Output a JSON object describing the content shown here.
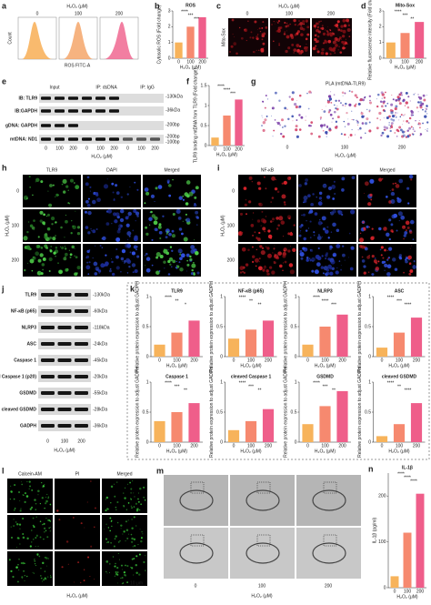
{
  "panels": {
    "a": {
      "letter": "a",
      "header": "H₂O₂ (μM)",
      "columns": [
        "0",
        "100",
        "200"
      ],
      "ylabel": "Count",
      "xlabel": "ROS FITC-A"
    },
    "b": {
      "letter": "b"
    },
    "c": {
      "letter": "c",
      "header": "H₂O₂ (μM)",
      "columns": [
        "0",
        "100",
        "200"
      ],
      "row": "Mito-Sox"
    },
    "d": {
      "letter": "d"
    },
    "e": {
      "letter": "e",
      "groups": [
        "Input",
        "IP: dsDNA",
        "IP: IgG"
      ],
      "rows": [
        "IB: TLR9",
        "IB:GAPDH",
        "gDNA: GAPDH",
        "mtDNA: ND1"
      ],
      "sizes": [
        "-130kDa",
        "-36kDa",
        "-200bp",
        "-200bp",
        "-100bp"
      ],
      "lanes": [
        "0",
        "100",
        "200",
        "0",
        "100",
        "200",
        "0",
        "100",
        "200"
      ],
      "xlabel": "H₂O₂ (μM)"
    },
    "f": {
      "letter": "f"
    },
    "g": {
      "letter": "g",
      "title": "PLA (mtDNA-TLR9)",
      "columns": [
        "0",
        "100",
        "200"
      ],
      "xlabel": "H₂O₂ (μM)"
    },
    "h": {
      "letter": "h",
      "columns": [
        "TLR9",
        "DAPI",
        "Merged"
      ],
      "rows": [
        "0",
        "100",
        "200"
      ],
      "axis": "H₂O₂ (μM)"
    },
    "i": {
      "letter": "i",
      "columns": [
        "NF-κB",
        "DAPI",
        "Merged"
      ],
      "rows": [
        "0",
        "100",
        "200"
      ],
      "axis": "H₂O₂ (μM)"
    },
    "j": {
      "letter": "j",
      "rows": [
        "TLR9",
        "NF-κB (p65)",
        "NLRP3",
        "ASC",
        "Caspase 1",
        "cleaved Caspase 1 (p20)",
        "GSDMD",
        "cleaved GSDMD",
        "GADPH"
      ],
      "sizes": [
        "-130kDa",
        "-60kDa",
        "-118kDa",
        "-24kDa",
        "-45kDa",
        "-20kDa",
        "-55kDa",
        "-28kDa",
        "-36kDa"
      ],
      "lanes": [
        "0",
        "100",
        "200"
      ],
      "xlabel": "H₂O₂ (μM)"
    },
    "k": {
      "letter": "k"
    },
    "l": {
      "letter": "l",
      "columns": [
        "Calcein-AM",
        "PI",
        "Merged"
      ],
      "scale": "10 μm",
      "xlabel": "H₂O₂ (μM)"
    },
    "m": {
      "letter": "m",
      "lanes": [
        "0",
        "100",
        "200"
      ],
      "xlabel": "H₂O₂ (μM)"
    },
    "n": {
      "letter": "n"
    }
  },
  "chart_data": [
    {
      "type": "bar",
      "title": "ROS",
      "ylabel": "Cytosolic ROS (Fold change)",
      "xlabel": "H₂O₂ (μM)",
      "categories": [
        "0",
        "100",
        "200"
      ],
      "values": [
        1,
        2,
        2.6
      ],
      "colors": [
        "#f7b35b",
        "#f6896f",
        "#ef5e8a"
      ],
      "ylim": [
        0,
        3
      ],
      "yticks": [
        0,
        1,
        2,
        3
      ],
      "annotations": [
        "****",
        "***",
        "***"
      ]
    },
    {
      "type": "bar",
      "title": "Mito-Sox",
      "ylabel": "Relative fluorescence intensity (Fold change)",
      "xlabel": "H₂O₂ (μM)",
      "categories": [
        "0",
        "100",
        "200"
      ],
      "values": [
        1,
        1.6,
        2.3
      ],
      "colors": [
        "#f7b35b",
        "#f6896f",
        "#ef5e8a"
      ],
      "ylim": [
        0,
        3
      ],
      "yticks": [
        0,
        1,
        2,
        3
      ],
      "annotations": [
        "****",
        "***",
        "**"
      ]
    },
    {
      "type": "bar",
      "title": "",
      "ylabel": "TLR9 binding mtDNA from TLR9 (Fold change)",
      "xlabel": "H₂O₂ (μM)",
      "categories": [
        "0",
        "100",
        "200"
      ],
      "values": [
        0.2,
        0.75,
        1.15
      ],
      "colors": [
        "#f7b35b",
        "#f6896f",
        "#ef5e8a"
      ],
      "ylim": [
        0,
        1.5
      ],
      "yticks": [
        0,
        0.5,
        1,
        1.5
      ],
      "annotations": [
        "****",
        "****",
        "***"
      ]
    },
    {
      "type": "bar",
      "title": "TLR9",
      "ylabel": "Relative protein expression to adjust GADPH",
      "xlabel": "H₂O₂ (μM)",
      "categories": [
        "0",
        "100",
        "200"
      ],
      "values": [
        0.2,
        0.4,
        0.6
      ],
      "colors": [
        "#f7b35b",
        "#f6896f",
        "#ef5e8a"
      ],
      "ylim": [
        0,
        1
      ],
      "yticks": [
        0,
        0.5,
        1
      ],
      "annotations": [
        "****",
        "**",
        "*"
      ]
    },
    {
      "type": "bar",
      "title": "NF-κB (p65)",
      "ylabel": "Relative protein expression to adjust GADPH",
      "xlabel": "H₂O₂ (μM)",
      "categories": [
        "0",
        "100",
        "200"
      ],
      "values": [
        0.3,
        0.45,
        0.6
      ],
      "colors": [
        "#f7b35b",
        "#f6896f",
        "#ef5e8a"
      ],
      "ylim": [
        0,
        1
      ],
      "yticks": [
        0,
        0.5,
        1
      ],
      "annotations": [
        "****",
        "**",
        "**"
      ]
    },
    {
      "type": "bar",
      "title": "NLRP3",
      "ylabel": "Relative protein expression to adjust GADPH",
      "xlabel": "H₂O₂ (μM)",
      "categories": [
        "0",
        "100",
        "200"
      ],
      "values": [
        0.2,
        0.5,
        0.7
      ],
      "colors": [
        "#f7b35b",
        "#f6896f",
        "#ef5e8a"
      ],
      "ylim": [
        0,
        1
      ],
      "yticks": [
        0,
        0.5,
        1
      ],
      "annotations": [
        "****",
        "****",
        "***"
      ]
    },
    {
      "type": "bar",
      "title": "ASC",
      "ylabel": "Relative protein expression to adjust GADPH",
      "xlabel": "H₂O₂ (μM)",
      "categories": [
        "0",
        "100",
        "200"
      ],
      "values": [
        0.15,
        0.4,
        0.65
      ],
      "colors": [
        "#f7b35b",
        "#f6896f",
        "#ef5e8a"
      ],
      "ylim": [
        0,
        1
      ],
      "yticks": [
        0,
        0.5,
        1
      ],
      "annotations": [
        "****",
        "***",
        "****"
      ]
    },
    {
      "type": "bar",
      "title": "Caspase 1",
      "ylabel": "Relative protein expression to adjust GADPH",
      "xlabel": "H₂O₂ (μM)",
      "categories": [
        "0",
        "100",
        "200"
      ],
      "values": [
        0.35,
        0.5,
        0.65
      ],
      "colors": [
        "#f7b35b",
        "#f6896f",
        "#ef5e8a"
      ],
      "ylim": [
        0,
        1
      ],
      "yticks": [
        0,
        0.5,
        1
      ],
      "annotations": [
        "****",
        "***",
        "**"
      ]
    },
    {
      "type": "bar",
      "title": "cleaved Caspase 1",
      "ylabel": "Relative protein expression to adjust GADPH",
      "xlabel": "H₂O₂ (μM)",
      "categories": [
        "0",
        "100",
        "200"
      ],
      "values": [
        0.2,
        0.35,
        0.55
      ],
      "colors": [
        "#f7b35b",
        "#f6896f",
        "#ef5e8a"
      ],
      "ylim": [
        0,
        1
      ],
      "yticks": [
        0,
        0.5,
        1
      ],
      "annotations": [
        "****",
        "***",
        "**"
      ]
    },
    {
      "type": "bar",
      "title": "GSDMD",
      "ylabel": "Relative protein expression to adjust GADPH",
      "xlabel": "H₂O₂ (μM)",
      "categories": [
        "0",
        "100",
        "200"
      ],
      "values": [
        0.3,
        0.6,
        0.85
      ],
      "colors": [
        "#f7b35b",
        "#f6896f",
        "#ef5e8a"
      ],
      "ylim": [
        0,
        1
      ],
      "yticks": [
        0,
        0.5,
        1
      ],
      "annotations": [
        "****",
        "***",
        "**"
      ]
    },
    {
      "type": "bar",
      "title": "cleaved GSDMD",
      "ylabel": "Relative protein expression to adjust GADPH",
      "xlabel": "H₂O₂ (μM)",
      "categories": [
        "0",
        "100",
        "200"
      ],
      "values": [
        0.1,
        0.3,
        0.65
      ],
      "colors": [
        "#f7b35b",
        "#f6896f",
        "#ef5e8a"
      ],
      "ylim": [
        0,
        1
      ],
      "yticks": [
        0,
        0.5,
        1
      ],
      "annotations": [
        "****",
        "**",
        "****"
      ]
    },
    {
      "type": "bar",
      "title": "IL-1β",
      "ylabel": "IL-1β (pg/ml)",
      "xlabel": "H₂O₂ (μM)",
      "categories": [
        "0",
        "100",
        "200"
      ],
      "values": [
        25,
        120,
        205
      ],
      "colors": [
        "#f7b35b",
        "#f6896f",
        "#ef5e8a"
      ],
      "ylim": [
        0,
        250
      ],
      "yticks": [
        0,
        100,
        200
      ],
      "annotations": [
        "****",
        "****",
        "****"
      ]
    }
  ]
}
